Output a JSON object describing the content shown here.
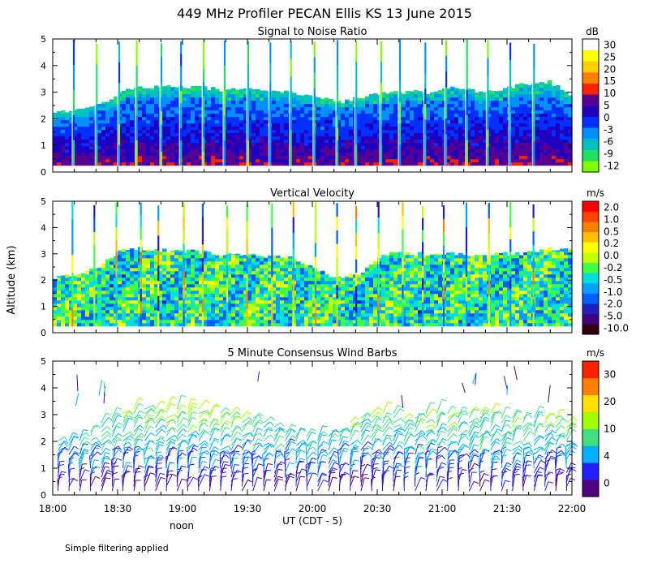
{
  "title": "449 MHz Profiler PECAN Ellis KS 13 June 2015",
  "y_axis_label": "Altitude (km)",
  "x_axis_label": "UT  (CDT - 5)",
  "noon_label": "noon",
  "footnote": "Simple filtering applied",
  "colors": {
    "snr": [
      "#80ff00",
      "#20e060",
      "#00c0c0",
      "#0090ff",
      "#0030ff",
      "#2000c0",
      "#5a0090",
      "#ff2000",
      "#ff8000",
      "#ffd000",
      "#ffff00",
      "#ffffff"
    ],
    "vel": [
      "#300010",
      "#400080",
      "#2020c0",
      "#0060ff",
      "#00a0ff",
      "#00e0e0",
      "#40ff40",
      "#c0ff00",
      "#ffff00",
      "#ffc000",
      "#ff8000",
      "#ff4000",
      "#ff0000"
    ],
    "wind": [
      "#500080",
      "#2020ff",
      "#00b0ff",
      "#40e080",
      "#a0ff00",
      "#ffe000",
      "#ff8000",
      "#ff2000"
    ]
  },
  "chart_data": [
    {
      "type": "heatmap",
      "title": "Signal to Noise Ratio",
      "ylabel": "Altitude (km)",
      "xlabel": "UT  (CDT - 5)",
      "ylim": [
        0,
        5
      ],
      "yticks": [
        "0",
        "1",
        "2",
        "3",
        "4",
        "5"
      ],
      "xticks": [
        "18:00",
        "18:30",
        "19:00",
        "19:30",
        "20:00",
        "20:30",
        "21:00",
        "21:30",
        "22:00"
      ],
      "colorbar_unit": "dB",
      "colorbar_labels": [
        "30",
        "25",
        "20",
        "15",
        "10",
        "5",
        "0",
        "-3",
        "-6",
        "-9",
        "-12"
      ],
      "top_km": [
        2.2,
        2.3,
        2.5,
        3.1,
        3.2,
        3.2,
        3.2,
        3.1,
        3.1,
        3.1,
        3.0,
        2.9,
        2.6,
        2.8,
        3.0,
        3.0,
        3.0,
        3.2,
        3.0,
        3.1,
        3.3,
        3.4,
        2.9
      ]
    },
    {
      "type": "heatmap",
      "title": "Vertical Velocity",
      "ylim": [
        0,
        5
      ],
      "yticks": [
        "0",
        "1",
        "2",
        "3",
        "4",
        "5"
      ],
      "xticks": [
        "18:00",
        "18:30",
        "19:00",
        "19:30",
        "20:00",
        "20:30",
        "21:00",
        "21:30",
        "22:00"
      ],
      "colorbar_unit": "m/s",
      "colorbar_labels": [
        "2.0",
        "1.0",
        "0.5",
        "0.2",
        "0.0",
        "-0.2",
        "-0.5",
        "-1.0",
        "-2.0",
        "-5.0",
        "-10.0"
      ],
      "top_km": [
        2.1,
        2.2,
        2.5,
        3.2,
        3.2,
        3.1,
        3.1,
        3.0,
        3.0,
        2.9,
        2.9,
        2.5,
        2.1,
        2.2,
        3.0,
        3.0,
        3.0,
        3.0,
        2.9,
        3.0,
        3.0,
        3.2,
        3.2
      ]
    },
    {
      "type": "scatter",
      "title": "5 Minute Consensus Wind Barbs",
      "ylim": [
        0,
        5
      ],
      "yticks": [
        "0",
        "1",
        "2",
        "3",
        "4",
        "5"
      ],
      "xticks": [
        "18:00",
        "18:30",
        "19:00",
        "19:30",
        "20:00",
        "20:30",
        "21:00",
        "21:30",
        "22:00"
      ],
      "colorbar_unit": "m/s",
      "colorbar_labels": [
        "30",
        "20",
        "10",
        "4",
        "0"
      ],
      "top_km": [
        2.0,
        2.2,
        2.7,
        3.2,
        3.3,
        3.3,
        3.3,
        3.1,
        3.0,
        2.8,
        2.3,
        2.2,
        2.3,
        3.0,
        3.1,
        3.0,
        3.1,
        3.1,
        3.1,
        3.0,
        3.0,
        3.0,
        2.8
      ]
    }
  ]
}
